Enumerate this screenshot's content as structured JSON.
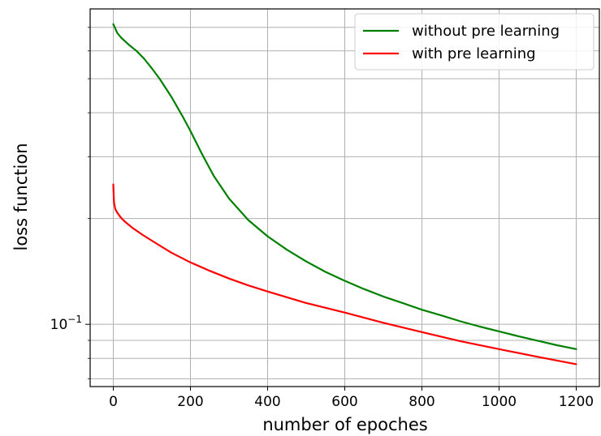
{
  "chart_data": {
    "type": "line",
    "xlabel": "number of epoches",
    "ylabel": "loss function",
    "xlim": [
      -60,
      1260
    ],
    "ylim": [
      0.0665,
      0.79
    ],
    "yscale": "log",
    "xticks": [
      0,
      200,
      400,
      600,
      800,
      1000,
      1200
    ],
    "xtick_labels": [
      "0",
      "200",
      "400",
      "600",
      "800",
      "1000",
      "1200"
    ],
    "yticks_major": [
      0.1
    ],
    "ytick_major_labels": {
      "base": "10",
      "exp": "−1"
    },
    "yticks_minor": [
      0.07,
      0.08,
      0.09,
      0.2,
      0.3,
      0.4,
      0.5,
      0.6,
      0.7
    ],
    "grid": true,
    "legend_position": "upper right",
    "series": [
      {
        "name": "without pre learning",
        "color": "#008000",
        "x": [
          0,
          5,
          10,
          20,
          40,
          60,
          80,
          100,
          120,
          150,
          180,
          200,
          230,
          260,
          300,
          350,
          400,
          450,
          500,
          550,
          600,
          650,
          700,
          750,
          800,
          850,
          900,
          950,
          1000,
          1050,
          1100,
          1150,
          1200
        ],
        "y": [
          0.715,
          0.695,
          0.675,
          0.655,
          0.625,
          0.6,
          0.57,
          0.535,
          0.5,
          0.445,
          0.39,
          0.355,
          0.305,
          0.265,
          0.228,
          0.198,
          0.178,
          0.163,
          0.151,
          0.141,
          0.133,
          0.126,
          0.12,
          0.115,
          0.11,
          0.106,
          0.102,
          0.0985,
          0.0955,
          0.0925,
          0.0898,
          0.0872,
          0.085
        ]
      },
      {
        "name": "with pre learning",
        "color": "#ff0000",
        "x": [
          0,
          1,
          2,
          5,
          10,
          20,
          30,
          50,
          75,
          100,
          150,
          200,
          250,
          300,
          350,
          400,
          500,
          600,
          700,
          800,
          900,
          1000,
          1100,
          1200
        ],
        "y": [
          0.25,
          0.232,
          0.222,
          0.213,
          0.208,
          0.201,
          0.196,
          0.188,
          0.18,
          0.173,
          0.16,
          0.15,
          0.142,
          0.135,
          0.129,
          0.124,
          0.115,
          0.108,
          0.101,
          0.095,
          0.0895,
          0.085,
          0.0808,
          0.077
        ]
      }
    ]
  }
}
